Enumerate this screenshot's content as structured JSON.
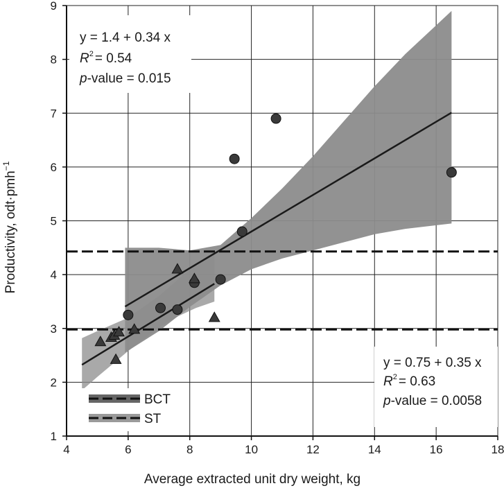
{
  "chart_data": {
    "type": "scatter",
    "xlabel": "Average extracted unit dry weight, kg",
    "ylabel": "Productivity, odt·pmh",
    "ylabel_sup": "−1",
    "xlim": [
      4,
      18
    ],
    "ylim": [
      1,
      9
    ],
    "x_ticks": [
      4,
      6,
      8,
      10,
      12,
      14,
      16,
      18
    ],
    "y_ticks": [
      1,
      2,
      3,
      4,
      5,
      6,
      7,
      8,
      9
    ],
    "grid": true,
    "colors": {
      "band": "#8c8c8c",
      "band_overlap": "#666666",
      "points": "#3a3a3a",
      "lines": "#1a1a1a"
    },
    "series": [
      {
        "name": "BCT",
        "marker": "circle",
        "points": [
          [
            6.0,
            3.25
          ],
          [
            7.05,
            3.38
          ],
          [
            7.6,
            3.35
          ],
          [
            8.15,
            3.85
          ],
          [
            9.0,
            3.91
          ],
          [
            9.45,
            6.15
          ],
          [
            9.7,
            4.8
          ],
          [
            10.8,
            6.9
          ],
          [
            16.5,
            5.9
          ]
        ],
        "fit": {
          "intercept": 1.4,
          "slope": 0.34,
          "x_range": [
            5.9,
            16.5
          ]
        },
        "ci_band": {
          "x": [
            5.9,
            7,
            8,
            9,
            10,
            11,
            12,
            13,
            14,
            15,
            16.5
          ],
          "upper": [
            4.5,
            4.5,
            4.45,
            4.55,
            5.05,
            5.6,
            6.2,
            6.85,
            7.5,
            8.1,
            8.9
          ],
          "lower": [
            2.55,
            2.95,
            3.4,
            3.8,
            4.1,
            4.3,
            4.45,
            4.6,
            4.75,
            4.85,
            4.95
          ]
        },
        "mean_line_y": 4.43,
        "annotation": {
          "equation": "y = 1.4 + 0.34 x",
          "r2_value": "= 0.54",
          "p_label": "-value = 0.015"
        }
      },
      {
        "name": "ST",
        "marker": "triangle",
        "points": [
          [
            5.1,
            2.75
          ],
          [
            5.45,
            2.83
          ],
          [
            5.55,
            2.87
          ],
          [
            5.6,
            2.42
          ],
          [
            5.7,
            2.93
          ],
          [
            6.2,
            2.98
          ],
          [
            7.6,
            4.1
          ],
          [
            8.15,
            3.92
          ],
          [
            8.8,
            3.2
          ]
        ],
        "fit": {
          "intercept": 0.75,
          "slope": 0.35,
          "x_range": [
            4.5,
            8.8
          ]
        },
        "ci_band": {
          "x": [
            4.5,
            5,
            6,
            7,
            7.6,
            8.2,
            8.8
          ],
          "upper": [
            2.82,
            2.95,
            3.2,
            3.6,
            3.9,
            4.18,
            4.45
          ],
          "lower": [
            1.85,
            2.1,
            2.58,
            3.02,
            3.22,
            3.38,
            3.5
          ]
        },
        "mean_line_y": 2.98,
        "annotation": {
          "equation": "y = 0.75 + 0.35 x",
          "r2_value": "= 0.63",
          "p_label": "-value = 0.0058"
        }
      }
    ],
    "legend": {
      "placement": "bottom-left",
      "entries": [
        "BCT",
        "ST"
      ]
    }
  }
}
